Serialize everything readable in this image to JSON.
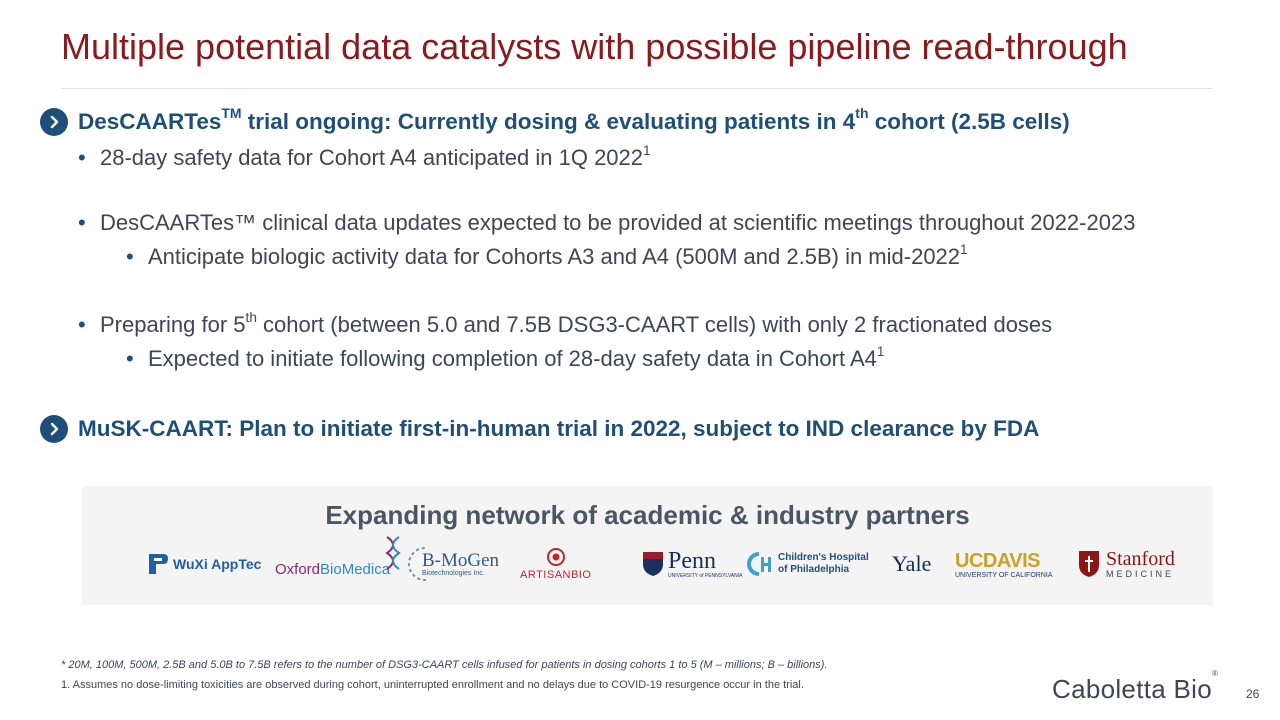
{
  "title": "Multiple potential data catalysts with possible pipeline read-through",
  "section1": {
    "pre": "DesCAARTes",
    "sup1": "TM",
    "mid": " trial ongoing: Currently dosing & evaluating patients in 4",
    "sup2": "th",
    "post": " cohort (2.5B cells)"
  },
  "bullets": {
    "b1": {
      "text": "28-day safety data for Cohort A4 anticipated in 1Q 2022",
      "sup": "1"
    },
    "b2": {
      "text": "DesCAARTes™ clinical data updates expected to be provided at scientific meetings throughout 2022-2023"
    },
    "b2a": {
      "text": "Anticipate biologic activity data for Cohorts A3 and A4 (500M and 2.5B) in mid-2022",
      "sup": "1"
    },
    "b3": {
      "pre": "Preparing for 5",
      "sup": "th",
      "post": " cohort (between 5.0 and 7.5B DSG3-CAART cells) with only 2 fractionated doses"
    },
    "b3a": {
      "text": "Expected to initiate following completion of 28-day safety data in Cohort A4",
      "sup": "1"
    },
    "bullet_char": "•"
  },
  "section2": {
    "text": "MuSK-CAART: Plan to initiate first-in-human trial in 2022, subject to IND clearance by FDA"
  },
  "partners": {
    "title": "Expanding network of academic & industry partners",
    "wuxi": "WuXi AppTec",
    "oxford_a": "Oxford",
    "oxford_b": "BioMedica",
    "bmogen": "B-MoGen",
    "bmogen_sub": "Biotechnologies Inc.",
    "artisan": "ARTISANBIO",
    "penn": "Penn",
    "penn_sub": "UNIVERSITY of PENNSYLVANIA",
    "chop_1": "Children's Hospital",
    "chop_2": "of Philadelphia",
    "yale": "Yale",
    "ucdavis": "UCDAVIS",
    "ucdavis_sub": "UNIVERSITY OF CALIFORNIA",
    "stanford": "Stanford",
    "stanford_sub": "MEDICINE"
  },
  "footnotes": {
    "f1": "* 20M, 100M, 500M, 2.5B and 5.0B to 7.5B refers to the number of DSG3-CAART cells infused for patients in dosing cohorts 1 to 5 (M – millions; B – billions).",
    "f2": "1. Assumes no dose-limiting toxicities are observed during cohort, uninterrupted enrollment and no delays due to COVID-19 resurgence occur in the trial."
  },
  "brand": "Caboletta Bio",
  "brand_mark": "®",
  "page_number": "26",
  "colors": {
    "title": "#8b1a1f",
    "accent": "#1f4f78",
    "body": "#3d4656",
    "panel": "#f4f4f4"
  }
}
